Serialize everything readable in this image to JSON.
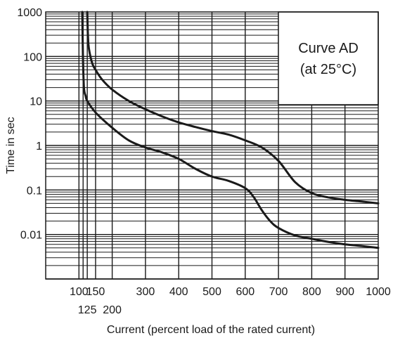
{
  "chart_data": {
    "type": "line",
    "title": "",
    "xlabel": "Current (percent load of the rated current)",
    "ylabel": "Time in sec",
    "x_scale": "linear",
    "y_scale": "log",
    "xlim": [
      0,
      1000
    ],
    "ylim": [
      0.001,
      1000
    ],
    "grid": true,
    "x_ticks_row1": [
      "100",
      "150",
      "300",
      "400",
      "500",
      "600",
      "700",
      "800",
      "900",
      "1000"
    ],
    "x_ticks_row2": [
      "125",
      "200"
    ],
    "y_ticks": [
      "1000",
      "100",
      "10",
      "1",
      "0.1",
      "0.01"
    ],
    "x_gridlines": [
      100,
      112.5,
      125,
      150,
      200,
      300,
      400,
      500,
      600,
      700,
      800,
      900
    ],
    "annotation": {
      "line1": "Curve AD",
      "line2": "(at 25°C)",
      "placement": "top-right"
    },
    "series": [
      {
        "x": [
          125,
          127,
          130,
          140,
          150,
          170,
          200,
          250,
          300,
          350,
          400,
          450,
          500,
          550,
          600,
          650,
          700,
          750,
          800,
          850,
          900,
          950,
          1000
        ],
        "y": [
          1000,
          300,
          150,
          70,
          50,
          30,
          18,
          10,
          6.5,
          4.5,
          3.3,
          2.6,
          2.1,
          1.75,
          1.3,
          0.9,
          0.45,
          0.15,
          0.085,
          0.068,
          0.06,
          0.055,
          0.05
        ]
      },
      {
        "x": [
          110,
          112,
          115,
          120,
          125,
          150,
          200,
          250,
          300,
          350,
          400,
          450,
          500,
          550,
          600,
          625,
          650,
          675,
          700,
          750,
          800,
          850,
          900,
          950,
          1000
        ],
        "y": [
          1000,
          100,
          20,
          13,
          10,
          5.5,
          2.5,
          1.3,
          0.9,
          0.7,
          0.5,
          0.3,
          0.2,
          0.16,
          0.11,
          0.07,
          0.035,
          0.02,
          0.014,
          0.0095,
          0.008,
          0.0068,
          0.006,
          0.0055,
          0.005
        ]
      }
    ]
  }
}
